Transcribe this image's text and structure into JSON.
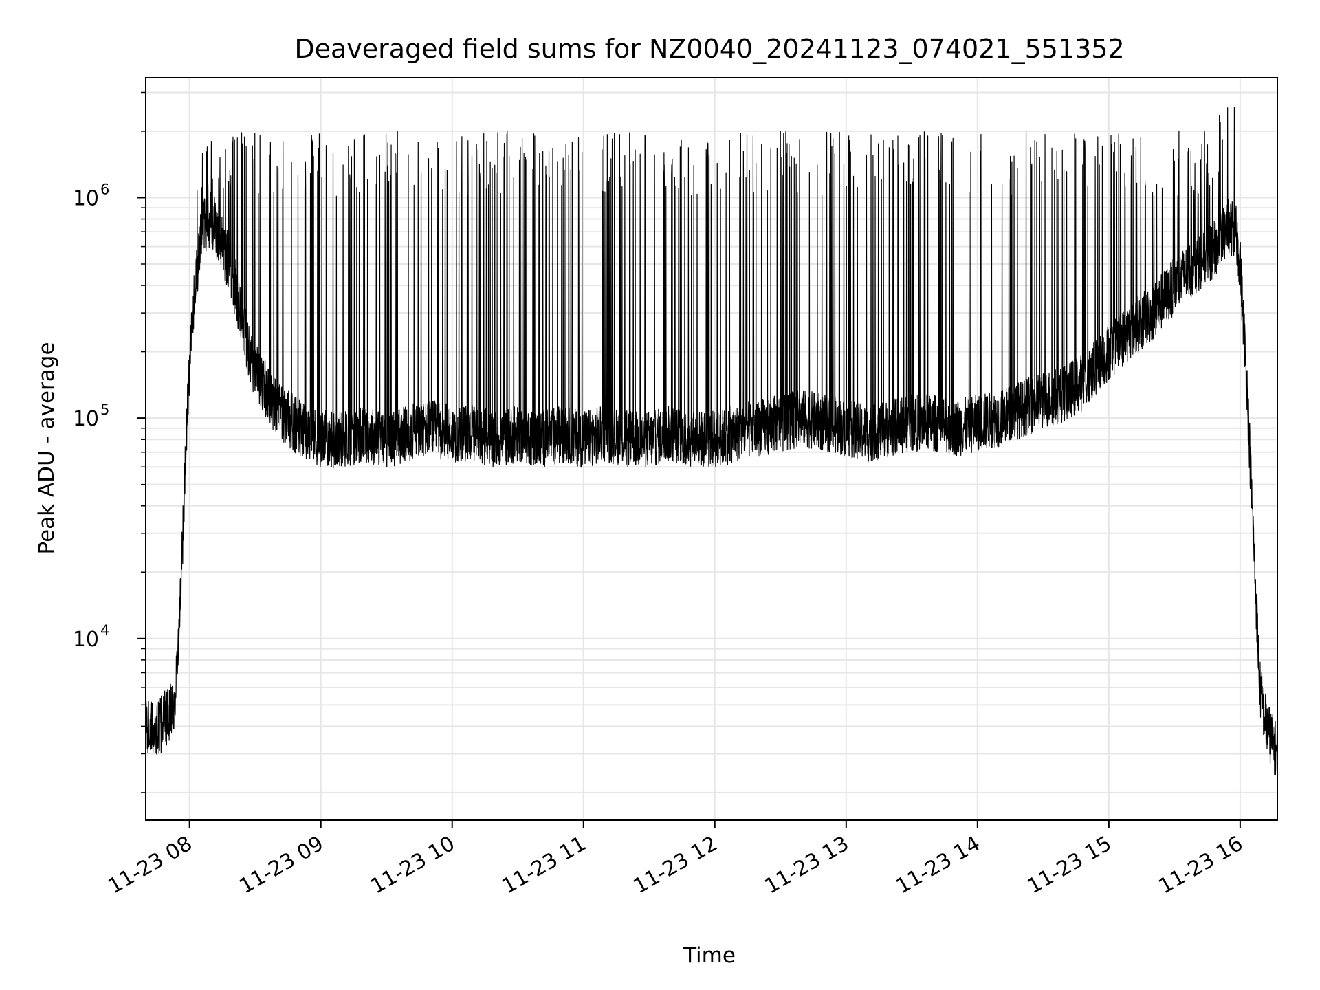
{
  "chart_data": {
    "type": "line",
    "title": "Deaveraged field sums for NZ0040_20241123_074021_551352",
    "xlabel": "Time",
    "ylabel": "Peak ADU - average",
    "x_ticks": [
      "11-23 08",
      "11-23 09",
      "11-23 10",
      "11-23 11",
      "11-23 12",
      "11-23 13",
      "11-23 14",
      "11-23 15",
      "11-23 16"
    ],
    "y_scale": "log",
    "y_ticks": [
      {
        "value": 10000,
        "base": "10",
        "exp": "4"
      },
      {
        "value": 100000,
        "base": "10",
        "exp": "5"
      },
      {
        "value": 1000000,
        "base": "10",
        "exp": "6"
      }
    ],
    "xlim": [
      "2024-11-23 07:40",
      "2024-11-23 16:17"
    ],
    "ylim": [
      1500,
      3500000
    ],
    "grid": true,
    "line_color": "#000000",
    "grid_color": "#e6e6e6",
    "series": [
      {
        "x": [
          "2024-11-23 07:40",
          "2024-11-23 07:45",
          "2024-11-23 07:50",
          "2024-11-23 07:53",
          "2024-11-23 07:55",
          "2024-11-23 07:57",
          "2024-11-23 07:59",
          "2024-11-23 08:02",
          "2024-11-23 08:06",
          "2024-11-23 08:10",
          "2024-11-23 08:14",
          "2024-11-23 08:18",
          "2024-11-23 08:22",
          "2024-11-23 08:27",
          "2024-11-23 08:32",
          "2024-11-23 08:40",
          "2024-11-23 08:50",
          "2024-11-23 09:00",
          "2024-11-23 09:10",
          "2024-11-23 09:20",
          "2024-11-23 09:30",
          "2024-11-23 09:40",
          "2024-11-23 09:50",
          "2024-11-23 10:00",
          "2024-11-23 10:10",
          "2024-11-23 10:20",
          "2024-11-23 10:30",
          "2024-11-23 10:40",
          "2024-11-23 10:50",
          "2024-11-23 11:00",
          "2024-11-23 11:10",
          "2024-11-23 11:20",
          "2024-11-23 11:30",
          "2024-11-23 11:40",
          "2024-11-23 11:50",
          "2024-11-23 12:00",
          "2024-11-23 12:10",
          "2024-11-23 12:20",
          "2024-11-23 12:30",
          "2024-11-23 12:40",
          "2024-11-23 12:50",
          "2024-11-23 13:00",
          "2024-11-23 13:10",
          "2024-11-23 13:20",
          "2024-11-23 13:30",
          "2024-11-23 13:40",
          "2024-11-23 13:50",
          "2024-11-23 14:00",
          "2024-11-23 14:10",
          "2024-11-23 14:20",
          "2024-11-23 14:30",
          "2024-11-23 14:40",
          "2024-11-23 14:50",
          "2024-11-23 15:00",
          "2024-11-23 15:10",
          "2024-11-23 15:20",
          "2024-11-23 15:30",
          "2024-11-23 15:40",
          "2024-11-23 15:50",
          "2024-11-23 15:55",
          "2024-11-23 15:58",
          "2024-11-23 16:00",
          "2024-11-23 16:03",
          "2024-11-23 16:06",
          "2024-11-23 16:09",
          "2024-11-23 16:12",
          "2024-11-23 16:17"
        ],
        "y": [
          4000,
          3800,
          4500,
          5000,
          9000,
          30000,
          110000,
          350000,
          750000,
          800000,
          650000,
          500000,
          350000,
          200000,
          150000,
          110000,
          90000,
          80000,
          80000,
          85000,
          80000,
          85000,
          90000,
          85000,
          85000,
          80000,
          85000,
          80000,
          85000,
          80000,
          85000,
          80000,
          80000,
          85000,
          80000,
          80000,
          85000,
          90000,
          95000,
          100000,
          95000,
          90000,
          85000,
          90000,
          95000,
          95000,
          90000,
          95000,
          100000,
          110000,
          120000,
          130000,
          150000,
          200000,
          250000,
          300000,
          400000,
          500000,
          600000,
          750000,
          700000,
          500000,
          150000,
          30000,
          6000,
          4000,
          3000
        ]
      }
    ]
  }
}
